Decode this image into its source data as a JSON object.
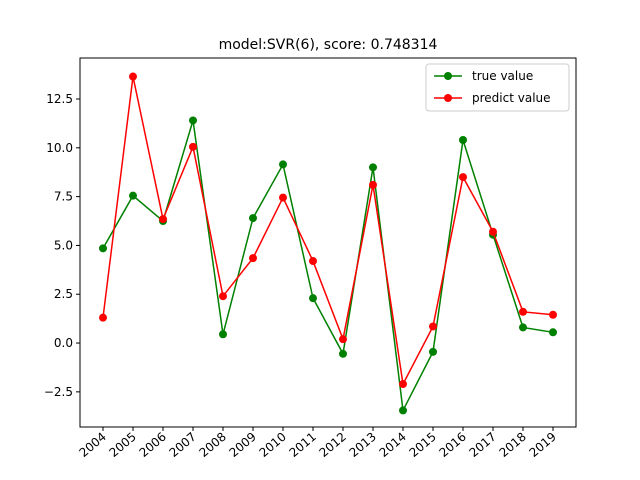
{
  "chart_data": {
    "type": "line",
    "title": "model:SVR(6), score: 0.748314",
    "xlabel": "",
    "ylabel": "",
    "x": [
      "2004",
      "2005",
      "2006",
      "2007",
      "2008",
      "2009",
      "2010",
      "2011",
      "2012",
      "2013",
      "2014",
      "2015",
      "2016",
      "2017",
      "2018",
      "2019"
    ],
    "ylim": [
      -4.3,
      14.6
    ],
    "yticks": [
      -2.5,
      0.0,
      2.5,
      5.0,
      7.5,
      10.0,
      12.5
    ],
    "ytick_labels": [
      "−2.5",
      "0.0",
      "2.5",
      "5.0",
      "7.5",
      "10.0",
      "12.5"
    ],
    "grid": false,
    "legend_position": "top-right",
    "series": [
      {
        "name": "true value",
        "color": "#008000",
        "values": [
          4.85,
          7.55,
          6.25,
          11.4,
          0.45,
          6.4,
          9.15,
          2.3,
          -0.55,
          9.0,
          -3.45,
          -0.45,
          10.4,
          5.55,
          0.8,
          0.55
        ]
      },
      {
        "name": "predict value",
        "color": "#ff0000",
        "values": [
          1.3,
          13.65,
          6.35,
          10.05,
          2.4,
          4.35,
          7.45,
          4.2,
          0.2,
          8.1,
          -2.1,
          0.85,
          8.5,
          5.7,
          1.6,
          1.45
        ]
      }
    ]
  }
}
